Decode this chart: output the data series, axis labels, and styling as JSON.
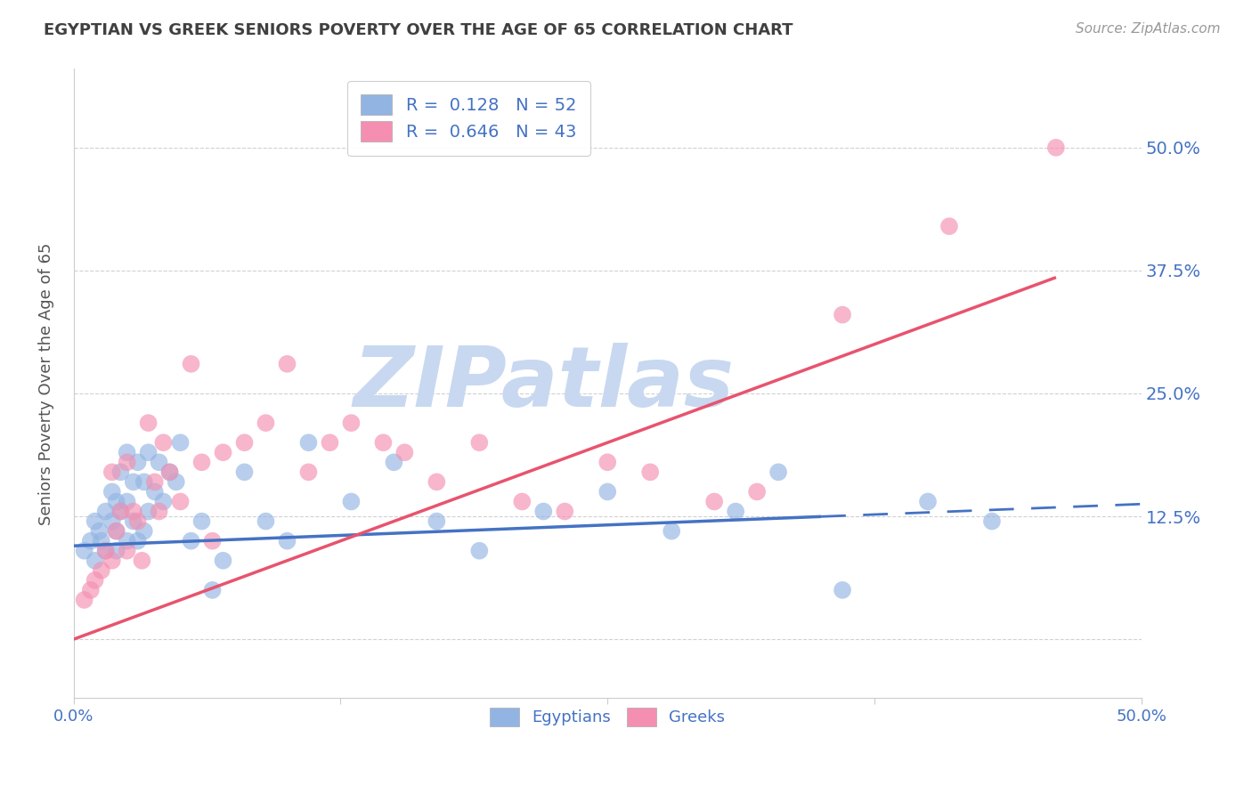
{
  "title": "EGYPTIAN VS GREEK SENIORS POVERTY OVER THE AGE OF 65 CORRELATION CHART",
  "source": "Source: ZipAtlas.com",
  "ylabel": "Seniors Poverty Over the Age of 65",
  "xlim": [
    0.0,
    0.5
  ],
  "ylim": [
    -0.06,
    0.58
  ],
  "yticks_right": [
    0.125,
    0.25,
    0.375,
    0.5
  ],
  "ytick_labels_right": [
    "12.5%",
    "25.0%",
    "37.5%",
    "50.0%"
  ],
  "legend_label1": "Egyptians",
  "legend_label2": "Greeks",
  "color_egyptian": "#92b4e3",
  "color_greek": "#f48fb1",
  "color_trend_egyptian": "#4472c4",
  "color_trend_greek": "#e8536e",
  "color_axis_labels": "#4472c4",
  "color_title": "#404040",
  "watermark_text": "ZIPatlas",
  "watermark_color": "#c8d8f0",
  "bg_color": "#ffffff",
  "grid_color": "#cccccc",
  "egyptian_x": [
    0.005,
    0.008,
    0.01,
    0.01,
    0.012,
    0.013,
    0.015,
    0.015,
    0.018,
    0.018,
    0.02,
    0.02,
    0.02,
    0.022,
    0.022,
    0.025,
    0.025,
    0.025,
    0.028,
    0.028,
    0.03,
    0.03,
    0.033,
    0.033,
    0.035,
    0.035,
    0.038,
    0.04,
    0.042,
    0.045,
    0.048,
    0.05,
    0.055,
    0.06,
    0.065,
    0.07,
    0.08,
    0.09,
    0.1,
    0.11,
    0.13,
    0.15,
    0.17,
    0.19,
    0.22,
    0.25,
    0.28,
    0.31,
    0.33,
    0.36,
    0.4,
    0.43
  ],
  "egyptian_y": [
    0.09,
    0.1,
    0.12,
    0.08,
    0.11,
    0.1,
    0.13,
    0.09,
    0.15,
    0.12,
    0.14,
    0.11,
    0.09,
    0.17,
    0.13,
    0.19,
    0.14,
    0.1,
    0.16,
    0.12,
    0.18,
    0.1,
    0.16,
    0.11,
    0.19,
    0.13,
    0.15,
    0.18,
    0.14,
    0.17,
    0.16,
    0.2,
    0.1,
    0.12,
    0.05,
    0.08,
    0.17,
    0.12,
    0.1,
    0.2,
    0.14,
    0.18,
    0.12,
    0.09,
    0.13,
    0.15,
    0.11,
    0.13,
    0.17,
    0.05,
    0.14,
    0.12
  ],
  "greek_x": [
    0.005,
    0.008,
    0.01,
    0.013,
    0.015,
    0.018,
    0.018,
    0.02,
    0.022,
    0.025,
    0.025,
    0.028,
    0.03,
    0.032,
    0.035,
    0.038,
    0.04,
    0.042,
    0.045,
    0.05,
    0.055,
    0.06,
    0.065,
    0.07,
    0.08,
    0.09,
    0.1,
    0.11,
    0.12,
    0.13,
    0.145,
    0.155,
    0.17,
    0.19,
    0.21,
    0.23,
    0.25,
    0.27,
    0.3,
    0.32,
    0.36,
    0.41,
    0.46
  ],
  "greek_y": [
    0.04,
    0.05,
    0.06,
    0.07,
    0.09,
    0.08,
    0.17,
    0.11,
    0.13,
    0.09,
    0.18,
    0.13,
    0.12,
    0.08,
    0.22,
    0.16,
    0.13,
    0.2,
    0.17,
    0.14,
    0.28,
    0.18,
    0.1,
    0.19,
    0.2,
    0.22,
    0.28,
    0.17,
    0.2,
    0.22,
    0.2,
    0.19,
    0.16,
    0.2,
    0.14,
    0.13,
    0.18,
    0.17,
    0.14,
    0.15,
    0.33,
    0.42,
    0.5
  ],
  "eg_trend_x_solid_end": 0.35,
  "eg_trend_intercept": 0.095,
  "eg_trend_slope": 0.085,
  "gr_trend_intercept": 0.0,
  "gr_trend_slope": 0.8,
  "gr_trend_x_end": 0.46
}
